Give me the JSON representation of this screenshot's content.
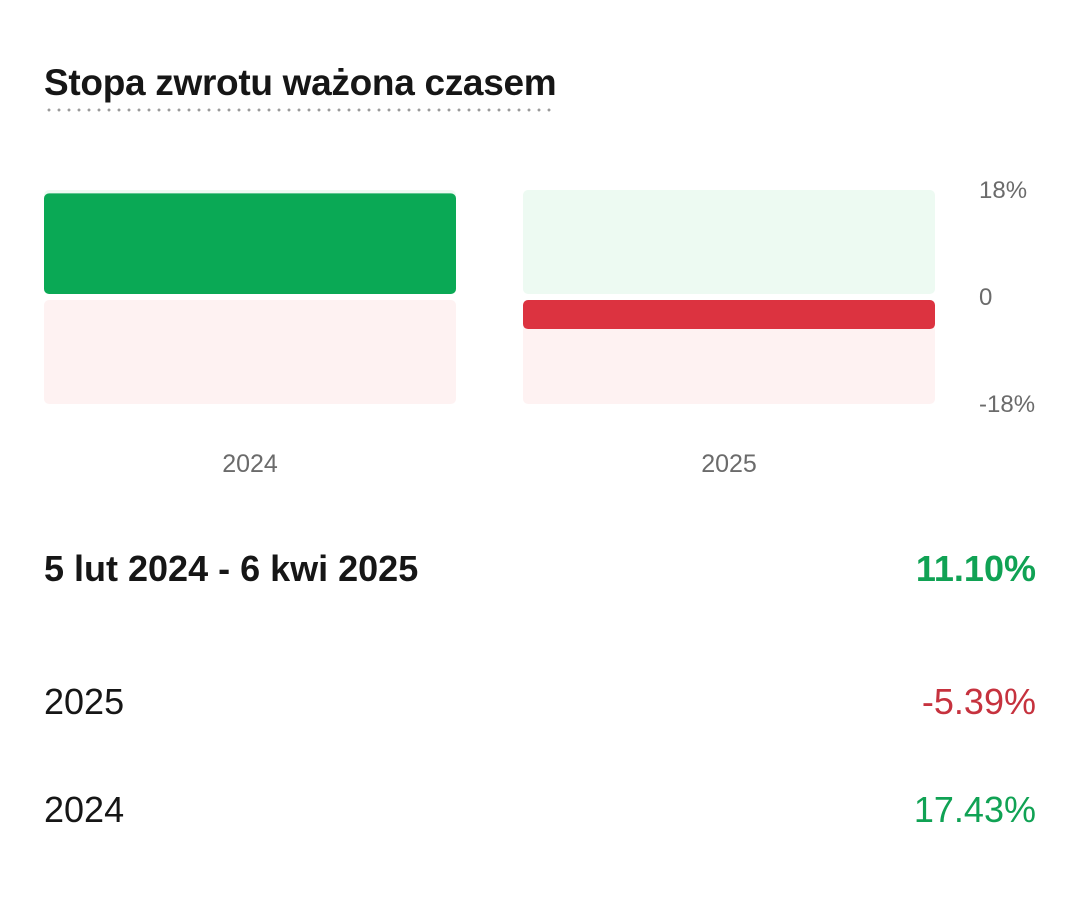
{
  "title": "Stopa zwrotu ważona czasem",
  "colors": {
    "positive": "#0aa955",
    "positive_bg": "#edfaf2",
    "negative": "#dc3340",
    "negative_bg": "#fef2f2",
    "positive_text": "#10a254",
    "negative_text": "#c6323e"
  },
  "chart_data": {
    "type": "bar",
    "categories": [
      "2024",
      "2025"
    ],
    "values": [
      17.43,
      -5.39
    ],
    "ylim": [
      -18,
      18
    ],
    "y_ticks": [
      18,
      0,
      -18
    ],
    "y_tick_labels": [
      "18%",
      "0",
      "-18%"
    ],
    "title": "",
    "xlabel": "",
    "ylabel": ""
  },
  "summary": {
    "period": "5 lut 2024 - 6 kwi 2025",
    "value": "11.10%"
  },
  "years": [
    {
      "label": "2025",
      "value": "-5.39%",
      "sign": "neg"
    },
    {
      "label": "2024",
      "value": "17.43%",
      "sign": "pos"
    }
  ]
}
